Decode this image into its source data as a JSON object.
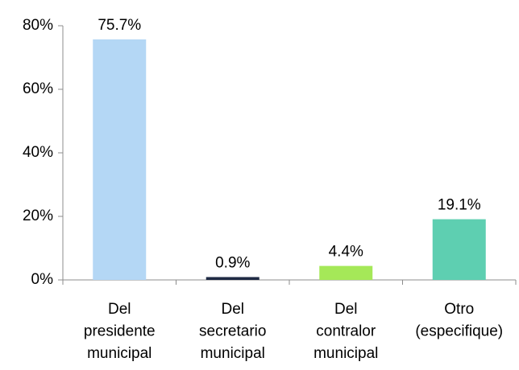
{
  "chart_data": {
    "type": "bar",
    "categories": [
      "Del\npresidente\nmunicipal",
      "Del\nsecretario\nmunicipal",
      "Del\ncontralor\nmunicipal",
      "Otro\n(especifique)"
    ],
    "values": [
      75.7,
      0.9,
      4.4,
      19.1
    ],
    "value_labels": [
      "75.7%",
      "0.9%",
      "4.4%",
      "19.1%"
    ],
    "colors": [
      "#b4d7f5",
      "#1f2a44",
      "#a5e858",
      "#5ecfb1"
    ],
    "ylim": [
      0,
      80
    ],
    "yticks": [
      {
        "value": 0,
        "label": "0%"
      },
      {
        "value": 20,
        "label": "20%"
      },
      {
        "value": 40,
        "label": "40%"
      },
      {
        "value": 60,
        "label": "60%"
      },
      {
        "value": 80,
        "label": "80%"
      }
    ],
    "grid": false
  }
}
